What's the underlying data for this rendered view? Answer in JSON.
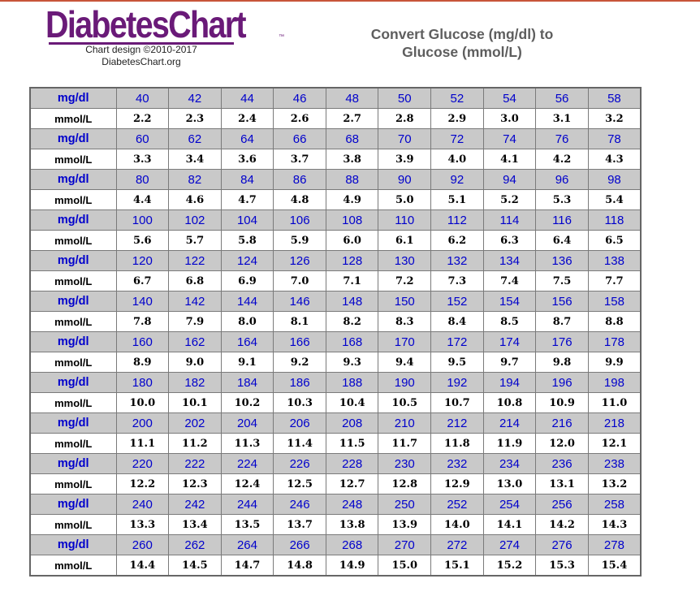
{
  "header": {
    "logo_text": "DiabetesChart",
    "trademark": "™",
    "credit_line1": "Chart design ©2010-2017",
    "credit_line2": "DiabetesChart.org",
    "title_line1": "Convert Glucose (mg/dl) to",
    "title_line2": "Glucose (mmol/L)"
  },
  "labels": {
    "mgdl": "mg/dl",
    "mmol": "mmol/L"
  },
  "colors": {
    "logo": "#6a1a78",
    "mg_text": "#0000cc",
    "mg_row_bg": "#c9c9c9",
    "title": "#5e5e5e"
  },
  "rows": [
    {
      "mgdl": [
        "40",
        "42",
        "44",
        "46",
        "48",
        "50",
        "52",
        "54",
        "56",
        "58"
      ],
      "mmol": [
        "2.2",
        "2.3",
        "2.4",
        "2.6",
        "2.7",
        "2.8",
        "2.9",
        "3.0",
        "3.1",
        "3.2"
      ]
    },
    {
      "mgdl": [
        "60",
        "62",
        "64",
        "66",
        "68",
        "70",
        "72",
        "74",
        "76",
        "78"
      ],
      "mmol": [
        "3.3",
        "3.4",
        "3.6",
        "3.7",
        "3.8",
        "3.9",
        "4.0",
        "4.1",
        "4.2",
        "4.3"
      ]
    },
    {
      "mgdl": [
        "80",
        "82",
        "84",
        "86",
        "88",
        "90",
        "92",
        "94",
        "96",
        "98"
      ],
      "mmol": [
        "4.4",
        "4.6",
        "4.7",
        "4.8",
        "4.9",
        "5.0",
        "5.1",
        "5.2",
        "5.3",
        "5.4"
      ]
    },
    {
      "mgdl": [
        "100",
        "102",
        "104",
        "106",
        "108",
        "110",
        "112",
        "114",
        "116",
        "118"
      ],
      "mmol": [
        "5.6",
        "5.7",
        "5.8",
        "5.9",
        "6.0",
        "6.1",
        "6.2",
        "6.3",
        "6.4",
        "6.5"
      ]
    },
    {
      "mgdl": [
        "120",
        "122",
        "124",
        "126",
        "128",
        "130",
        "132",
        "134",
        "136",
        "138"
      ],
      "mmol": [
        "6.7",
        "6.8",
        "6.9",
        "7.0",
        "7.1",
        "7.2",
        "7.3",
        "7.4",
        "7.5",
        "7.7"
      ]
    },
    {
      "mgdl": [
        "140",
        "142",
        "144",
        "146",
        "148",
        "150",
        "152",
        "154",
        "156",
        "158"
      ],
      "mmol": [
        "7.8",
        "7.9",
        "8.0",
        "8.1",
        "8.2",
        "8.3",
        "8.4",
        "8.5",
        "8.7",
        "8.8"
      ]
    },
    {
      "mgdl": [
        "160",
        "162",
        "164",
        "166",
        "168",
        "170",
        "172",
        "174",
        "176",
        "178"
      ],
      "mmol": [
        "8.9",
        "9.0",
        "9.1",
        "9.2",
        "9.3",
        "9.4",
        "9.5",
        "9.7",
        "9.8",
        "9.9"
      ]
    },
    {
      "mgdl": [
        "180",
        "182",
        "184",
        "186",
        "188",
        "190",
        "192",
        "194",
        "196",
        "198"
      ],
      "mmol": [
        "10.0",
        "10.1",
        "10.2",
        "10.3",
        "10.4",
        "10.5",
        "10.7",
        "10.8",
        "10.9",
        "11.0"
      ]
    },
    {
      "mgdl": [
        "200",
        "202",
        "204",
        "206",
        "208",
        "210",
        "212",
        "214",
        "216",
        "218"
      ],
      "mmol": [
        "11.1",
        "11.2",
        "11.3",
        "11.4",
        "11.5",
        "11.7",
        "11.8",
        "11.9",
        "12.0",
        "12.1"
      ]
    },
    {
      "mgdl": [
        "220",
        "222",
        "224",
        "226",
        "228",
        "230",
        "232",
        "234",
        "236",
        "238"
      ],
      "mmol": [
        "12.2",
        "12.3",
        "12.4",
        "12.5",
        "12.7",
        "12.8",
        "12.9",
        "13.0",
        "13.1",
        "13.2"
      ]
    },
    {
      "mgdl": [
        "240",
        "242",
        "244",
        "246",
        "248",
        "250",
        "252",
        "254",
        "256",
        "258"
      ],
      "mmol": [
        "13.3",
        "13.4",
        "13.5",
        "13.7",
        "13.8",
        "13.9",
        "14.0",
        "14.1",
        "14.2",
        "14.3"
      ]
    },
    {
      "mgdl": [
        "260",
        "262",
        "264",
        "266",
        "268",
        "270",
        "272",
        "274",
        "276",
        "278"
      ],
      "mmol": [
        "14.4",
        "14.5",
        "14.7",
        "14.8",
        "14.9",
        "15.0",
        "15.1",
        "15.2",
        "15.3",
        "15.4"
      ]
    }
  ]
}
